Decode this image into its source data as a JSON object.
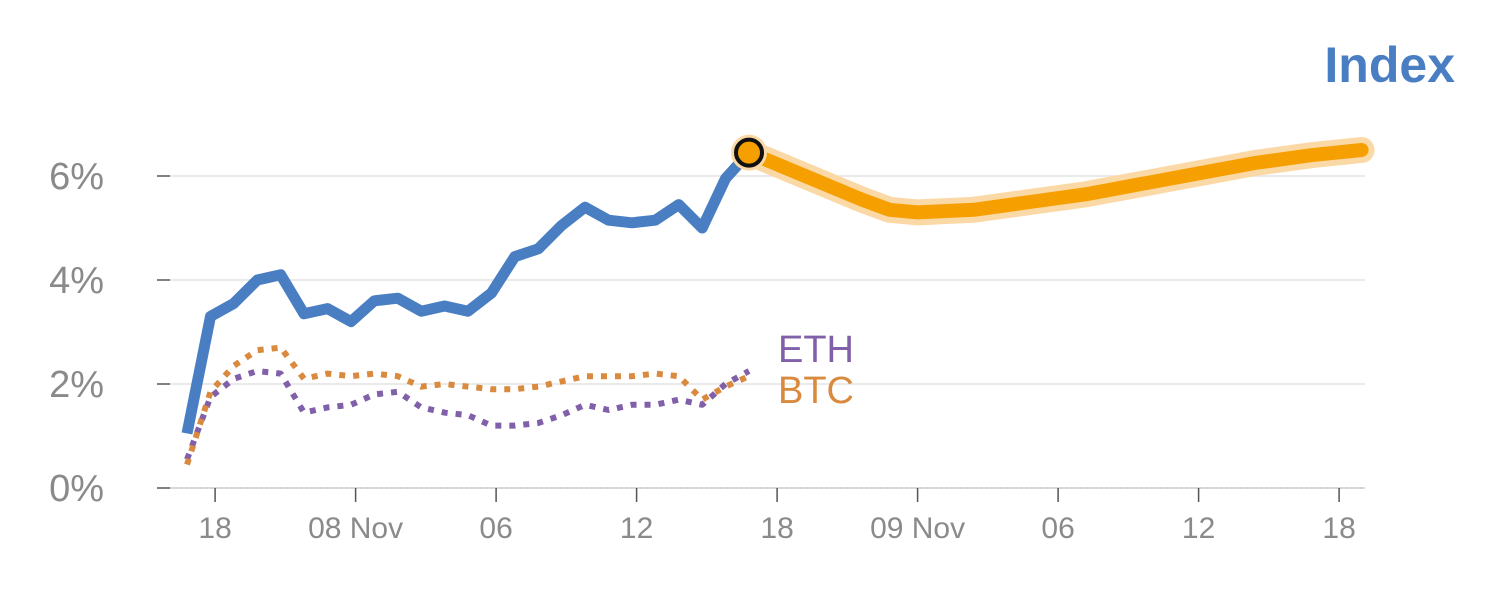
{
  "chart_data": {
    "type": "line",
    "title": "Index",
    "xlabel": "",
    "ylabel": "",
    "ylim": [
      0,
      7.5
    ],
    "y_ticks": [
      0,
      2,
      4,
      6
    ],
    "y_tick_labels": [
      "0%",
      "2%",
      "4%",
      "6%"
    ],
    "xlim": [
      0,
      84
    ],
    "x_ticks": [
      2,
      12,
      22,
      32,
      42,
      52,
      62,
      72,
      82
    ],
    "x_tick_labels": [
      "18",
      "08 Nov",
      "06",
      "12",
      "18",
      "09 Nov",
      "06",
      "12",
      "18"
    ],
    "grid": "horizontal",
    "series": [
      {
        "name": "Index",
        "style": "solid",
        "color": "#4a7ec3",
        "x": [
          0,
          1.67,
          3.33,
          5,
          6.67,
          8.33,
          10,
          11.67,
          13.33,
          15,
          16.67,
          18.33,
          20,
          21.67,
          23.33,
          25,
          26.67,
          28.33,
          30,
          31.67,
          33.33,
          35,
          36.67,
          38.33,
          40
        ],
        "y": [
          1.05,
          3.3,
          3.55,
          4.0,
          4.1,
          3.35,
          3.45,
          3.2,
          3.6,
          3.65,
          3.4,
          3.5,
          3.4,
          3.75,
          4.45,
          4.6,
          5.05,
          5.4,
          5.15,
          5.1,
          5.15,
          5.45,
          5.0,
          5.95,
          6.45
        ]
      },
      {
        "name": "ETH",
        "style": "dotted",
        "color": "#8060a8",
        "x": [
          0,
          1.67,
          3.33,
          5,
          6.67,
          8.33,
          10,
          11.67,
          13.33,
          15,
          16.67,
          18.33,
          20,
          21.67,
          23.33,
          25,
          26.67,
          28.33,
          30,
          31.67,
          33.33,
          35,
          36.67,
          38.33,
          40
        ],
        "y": [
          0.55,
          1.75,
          2.1,
          2.25,
          2.2,
          1.45,
          1.55,
          1.6,
          1.8,
          1.85,
          1.55,
          1.45,
          1.4,
          1.2,
          1.2,
          1.25,
          1.4,
          1.6,
          1.5,
          1.6,
          1.6,
          1.7,
          1.6,
          2.0,
          2.25
        ]
      },
      {
        "name": "BTC",
        "style": "dotted",
        "color": "#d98a3f",
        "x": [
          0,
          1.67,
          3.33,
          5,
          6.67,
          8.33,
          10,
          11.67,
          13.33,
          15,
          16.67,
          18.33,
          20,
          21.67,
          23.33,
          25,
          26.67,
          28.33,
          30,
          31.67,
          33.33,
          35,
          36.67,
          38.33,
          40
        ],
        "y": [
          0.45,
          1.85,
          2.35,
          2.65,
          2.7,
          2.1,
          2.2,
          2.15,
          2.2,
          2.15,
          1.95,
          2.0,
          1.95,
          1.9,
          1.9,
          1.95,
          2.05,
          2.15,
          2.15,
          2.15,
          2.2,
          2.15,
          1.7,
          1.95,
          2.15
        ]
      },
      {
        "name": "",
        "style": "projection",
        "color": "#f5a000",
        "x": [
          40,
          44,
          48,
          50,
          52,
          56,
          60,
          64,
          68,
          72,
          76,
          80,
          83.6
        ],
        "y": [
          6.45,
          6.0,
          5.55,
          5.35,
          5.3,
          5.35,
          5.5,
          5.65,
          5.85,
          6.05,
          6.25,
          6.4,
          6.5
        ]
      }
    ],
    "marker": {
      "x": 40,
      "y": 6.45
    },
    "series_labels": [
      {
        "text": "ETH",
        "color": "#8060a8"
      },
      {
        "text": "BTC",
        "color": "#d98a3f"
      }
    ],
    "title_color": "#4a7ec3"
  }
}
